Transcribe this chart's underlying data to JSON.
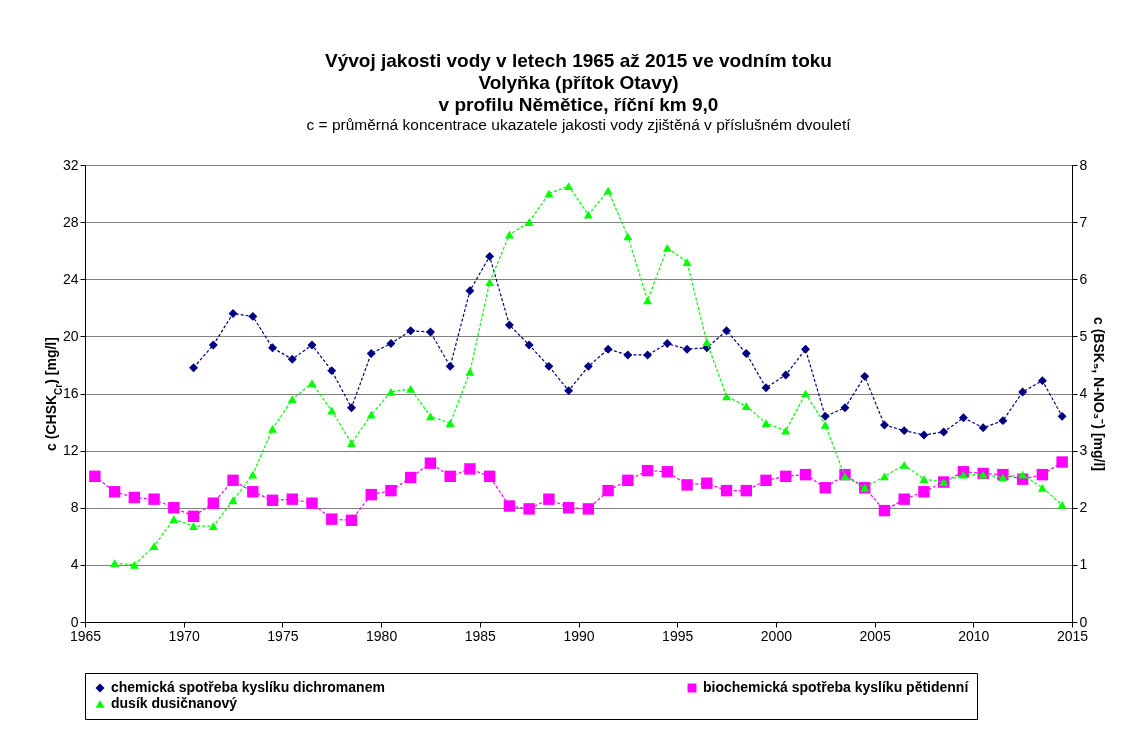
{
  "chart_data": {
    "type": "line",
    "title": [
      "Vývoj jakosti vody v letech 1965 až 2015 ve vodním toku",
      "Volyňka (přítok Otavy)",
      "v profilu Němětice, říční km 9,0"
    ],
    "subtitle": "c = průměrná koncentrace ukazatele jakosti vody zjištěná v příslušném dvouletí",
    "ylabel": "c (CHSK$_{Cr}$) [mg/l]",
    "y2label": "c (BSK₅, N-NO₃⁻) [mg/l]",
    "x": [
      1965.5,
      1966.5,
      1967.5,
      1968.5,
      1969.5,
      1970.5,
      1971.5,
      1972.5,
      1973.5,
      1974.5,
      1975.5,
      1976.5,
      1977.5,
      1978.5,
      1979.5,
      1980.5,
      1981.5,
      1982.5,
      1983.5,
      1984.5,
      1985.5,
      1986.5,
      1987.5,
      1988.5,
      1989.5,
      1990.5,
      1991.5,
      1992.5,
      1993.5,
      1994.5,
      1995.5,
      1996.5,
      1997.5,
      1998.5,
      1999.5,
      2000.5,
      2001.5,
      2002.5,
      2003.5,
      2004.5,
      2005.5,
      2006.5,
      2007.5,
      2008.5,
      2009.5,
      2010.5,
      2011.5,
      2012.5,
      2013.5,
      2014.5
    ],
    "series": [
      {
        "name": "chemická spotřeba kyslíku dichromanem",
        "color": "#000080",
        "marker": "diamond",
        "values": [
          null,
          null,
          null,
          null,
          null,
          17.8,
          19.4,
          21.6,
          21.4,
          19.2,
          18.4,
          19.4,
          17.6,
          15.0,
          18.8,
          19.5,
          20.4,
          20.3,
          17.9,
          23.2,
          25.6,
          20.8,
          19.4,
          17.9,
          16.2,
          17.9,
          19.1,
          18.7,
          18.7,
          19.5,
          19.1,
          19.2,
          20.4,
          18.8,
          16.4,
          17.3,
          19.1,
          14.4,
          15.0,
          17.2,
          13.8,
          13.4,
          13.1,
          13.3,
          14.3,
          13.6,
          14.1,
          16.1,
          16.9,
          14.4
        ]
      },
      {
        "name": "biochemická spotřeba kyslíku pětidenní",
        "color": "#ff00ff",
        "marker": "square",
        "axis": "y2",
        "values": [
          2.55,
          2.28,
          2.18,
          2.15,
          2.0,
          1.85,
          2.08,
          2.48,
          2.28,
          2.13,
          2.15,
          2.08,
          1.8,
          1.78,
          2.23,
          2.3,
          2.53,
          2.78,
          2.55,
          2.68,
          2.55,
          2.03,
          1.98,
          2.15,
          2.0,
          1.98,
          2.3,
          2.48,
          2.65,
          2.63,
          2.4,
          2.43,
          2.3,
          2.3,
          2.48,
          2.55,
          2.58,
          2.35,
          2.58,
          2.35,
          1.95,
          2.15,
          2.28,
          2.45,
          2.63,
          2.6,
          2.58,
          2.5,
          2.58,
          2.8
        ]
      },
      {
        "name": "dusík dusičnanový",
        "color": "#00ff00",
        "marker": "triangle",
        "axis": "y2",
        "values": [
          null,
          1.03,
          1.0,
          1.33,
          1.8,
          1.68,
          1.68,
          2.13,
          2.58,
          3.38,
          3.9,
          4.18,
          3.7,
          3.13,
          3.63,
          4.03,
          4.08,
          3.6,
          3.48,
          4.38,
          5.95,
          6.78,
          7.0,
          7.5,
          7.63,
          7.13,
          7.55,
          6.75,
          5.63,
          6.55,
          6.3,
          4.9,
          3.95,
          3.78,
          3.48,
          3.35,
          4.0,
          3.45,
          2.55,
          2.35,
          2.55,
          2.75,
          2.5,
          2.45,
          2.58,
          2.58,
          2.53,
          2.58,
          2.35,
          2.05
        ]
      }
    ],
    "xlim": [
      1965,
      2015
    ],
    "xticks": [
      1965,
      1970,
      1975,
      1980,
      1985,
      1990,
      1995,
      2000,
      2005,
      2010,
      2015
    ],
    "ylim": [
      0,
      32
    ],
    "yticks": [
      0,
      4,
      8,
      12,
      16,
      20,
      24,
      28,
      32
    ],
    "y2lim": [
      0,
      8
    ],
    "y2ticks": [
      0,
      1,
      2,
      3,
      4,
      5,
      6,
      7,
      8
    ],
    "grid": "y",
    "legend": "bottom",
    "line_style": "dashed"
  }
}
